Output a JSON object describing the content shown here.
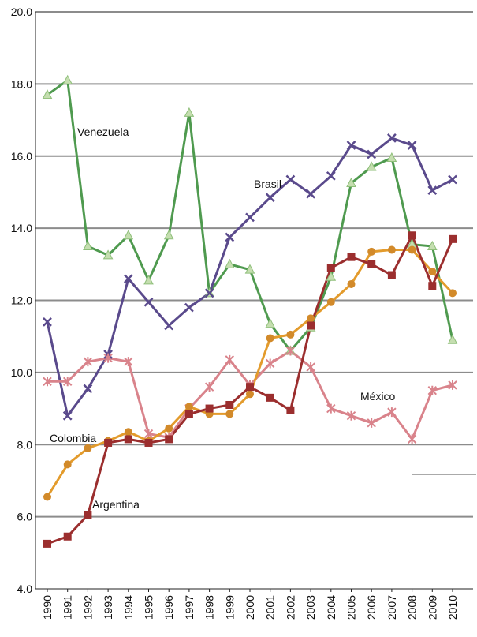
{
  "chart_data": {
    "type": "line",
    "title": "",
    "xlabel": "",
    "ylabel": "",
    "x": [
      "1990",
      "1991",
      "1992",
      "1993",
      "1994",
      "1995",
      "1996",
      "1997",
      "1998",
      "1999",
      "2000",
      "2001",
      "2002",
      "2003",
      "2004",
      "2005",
      "2006",
      "2007",
      "2008",
      "2009",
      "2010"
    ],
    "ylim": [
      4.0,
      20.0
    ],
    "yticks": [
      "4.0",
      "6.0",
      "8.0",
      "10.0",
      "12.0",
      "14.0",
      "16.0",
      "18.0",
      "20.0"
    ],
    "grid": true,
    "legend": "none",
    "series": [
      {
        "name": "Venezuela",
        "color": "#4f9a4f",
        "markerFill": "#c5deb0",
        "marker": "triangle",
        "values": [
          17.7,
          18.1,
          13.5,
          13.25,
          13.8,
          12.55,
          13.8,
          17.2,
          12.2,
          13.0,
          12.85,
          11.35,
          10.6,
          11.25,
          12.65,
          15.25,
          15.7,
          15.95,
          13.55,
          13.5,
          10.9
        ]
      },
      {
        "name": "Brasil",
        "color": "#5a4a8c",
        "markerFill": "#5a4a8c",
        "marker": "x",
        "values": [
          11.4,
          8.8,
          9.55,
          10.5,
          12.6,
          11.95,
          11.3,
          11.8,
          12.2,
          13.75,
          14.3,
          14.85,
          15.35,
          14.95,
          15.45,
          16.3,
          16.05,
          16.5,
          16.3,
          15.05,
          15.35
        ]
      },
      {
        "name": "México",
        "color": "#d9838b",
        "markerFill": "#d9838b",
        "marker": "star",
        "values": [
          9.75,
          9.75,
          10.3,
          10.4,
          10.3,
          8.3,
          8.2,
          9.0,
          9.6,
          10.35,
          9.65,
          10.25,
          10.6,
          10.15,
          9.0,
          8.8,
          8.6,
          8.9,
          8.15,
          9.5,
          9.65
        ]
      },
      {
        "name": "Colombia",
        "color": "#e39b2c",
        "markerFill": "#d28a2a",
        "marker": "circle",
        "values": [
          6.55,
          7.45,
          7.9,
          8.1,
          8.35,
          8.1,
          8.45,
          9.05,
          8.85,
          8.85,
          9.4,
          10.95,
          11.05,
          11.5,
          11.95,
          12.45,
          13.35,
          13.4,
          13.4,
          12.8,
          12.2
        ]
      },
      {
        "name": "Argentina",
        "color": "#9b2e2e",
        "markerFill": "#9b2e2e",
        "marker": "square",
        "values": [
          5.25,
          5.45,
          6.05,
          8.05,
          8.15,
          8.05,
          8.15,
          8.85,
          9.0,
          9.1,
          9.6,
          9.3,
          8.95,
          11.3,
          12.9,
          13.2,
          13.0,
          12.7,
          13.8,
          12.4,
          13.7
        ]
      }
    ],
    "annotations": [
      {
        "text": "Venezuela"
      },
      {
        "text": "Brasil"
      },
      {
        "text": "México"
      },
      {
        "text": "Colombia"
      },
      {
        "text": "Argentina"
      }
    ]
  }
}
